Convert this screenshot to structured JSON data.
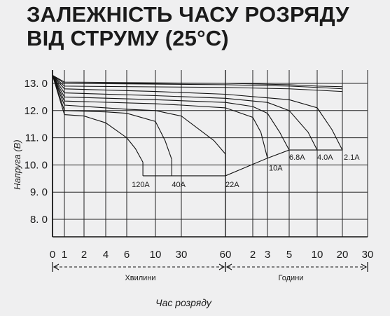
{
  "chart_data": {
    "type": "line",
    "title": [
      "ЗАЛЕЖНІСТЬ ЧАСУ РОЗРЯДУ",
      "ВІД СТРУМУ (25°C)"
    ],
    "ylabel": "Напруга (В)",
    "xlabel": "Час розряду",
    "y_ticks": [
      "13. 0",
      "12. 0",
      "11. 0",
      "10. 0",
      "9. 0",
      "8. 0"
    ],
    "y_tick_values": [
      13,
      12,
      11,
      10,
      9,
      8
    ],
    "ylim": [
      7.2,
      13.5
    ],
    "x_ticks": [
      "0",
      "1",
      "2",
      "4",
      "6",
      "10",
      "30",
      "60",
      "2",
      "3",
      "5",
      "10",
      "20",
      "30"
    ],
    "x_ticks_minutes": [
      0,
      1,
      2,
      4,
      6,
      10,
      30,
      60,
      120,
      180,
      300,
      600,
      1200,
      1800
    ],
    "x_scale": "piecewise (minutes 0–60, hours 1–30)",
    "segments": [
      {
        "label": "Хвилини",
        "from": 0,
        "to": 60
      },
      {
        "label": "Години",
        "from": 60,
        "to": 1800
      }
    ],
    "grid": true,
    "series": [
      {
        "name": "120A",
        "x": [
          0,
          1,
          2,
          4,
          6,
          7,
          8
        ],
        "y": [
          13.3,
          11.85,
          11.8,
          11.55,
          11.0,
          10.6,
          10.1
        ]
      },
      {
        "name": "40A",
        "x": [
          0,
          1,
          4,
          6,
          10,
          15,
          20
        ],
        "y": [
          13.3,
          12.0,
          11.95,
          11.9,
          11.6,
          10.9,
          10.2
        ]
      },
      {
        "name": "22A",
        "x": [
          0,
          1,
          6,
          10,
          30,
          50,
          60
        ],
        "y": [
          13.3,
          12.2,
          12.05,
          12.0,
          11.8,
          10.9,
          10.4
        ]
      },
      {
        "name": "10A",
        "x": [
          0,
          1,
          10,
          30,
          60,
          120,
          150,
          180
        ],
        "y": [
          13.3,
          12.35,
          12.25,
          12.2,
          12.1,
          11.75,
          11.2,
          10.25
        ]
      },
      {
        "name": "6.8A",
        "x": [
          0,
          1,
          10,
          60,
          120,
          180,
          240,
          300
        ],
        "y": [
          13.3,
          12.5,
          12.4,
          12.3,
          12.15,
          11.9,
          11.2,
          10.55
        ]
      },
      {
        "name": "4.0A",
        "x": [
          0,
          1,
          10,
          60,
          180,
          300,
          480,
          600
        ],
        "y": [
          13.3,
          12.65,
          12.55,
          12.45,
          12.3,
          12.0,
          11.2,
          10.55
        ]
      },
      {
        "name": "2.1A",
        "x": [
          0,
          1,
          10,
          60,
          300,
          600,
          900,
          1200
        ],
        "y": [
          13.3,
          12.8,
          12.7,
          12.6,
          12.4,
          12.1,
          11.3,
          10.55
        ]
      }
    ],
    "end_voltage": {
      "x": [
        8,
        20,
        60,
        180,
        300,
        600,
        1200
      ],
      "y": [
        9.6,
        9.6,
        9.6,
        10.25,
        10.55,
        10.55,
        10.55
      ]
    },
    "upper_bands": {
      "x": [
        0,
        1,
        60,
        300,
        600,
        1200
      ],
      "y_series": [
        [
          13.3,
          12.9,
          12.85,
          12.8,
          12.75,
          12.7
        ],
        [
          13.3,
          13.0,
          12.95,
          12.9,
          12.85,
          12.8
        ],
        [
          13.3,
          13.05,
          13.0,
          12.95,
          12.9,
          12.88
        ]
      ]
    }
  }
}
